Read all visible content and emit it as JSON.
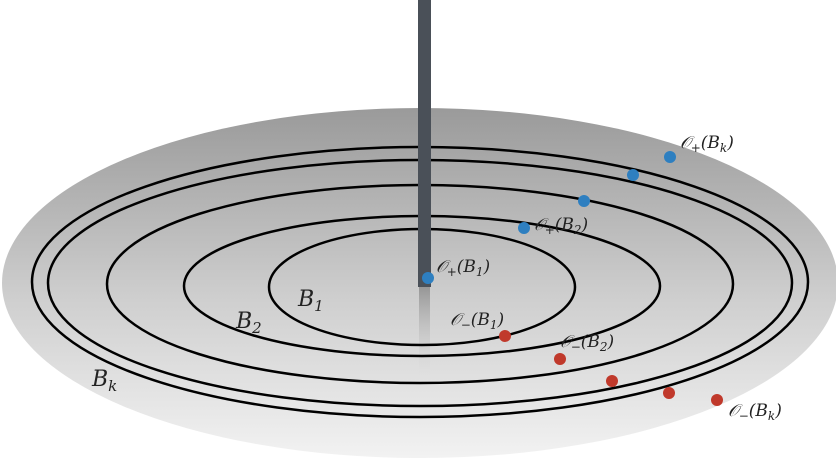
{
  "diagram": {
    "colors": {
      "disk_fill_light": "#f2f2f2",
      "disk_fill_dark": "#9a9a9a",
      "ring_stroke": "#000000",
      "rod": "#4a5058",
      "positive_dot": "#2e7fc0",
      "negative_dot": "#c0392b"
    },
    "ring_labels": {
      "b1": "B",
      "b1_sub": "1",
      "b2": "B",
      "b2_sub": "2",
      "bk": "B",
      "bk_sub": "k"
    },
    "orbit_labels": {
      "plus_b1": {
        "main": "𝒪",
        "sign": "+",
        "arg": "(B",
        "sub": "1",
        "close": ")"
      },
      "plus_b2": {
        "main": "𝒪",
        "sign": "+",
        "arg": "(B",
        "sub": "2",
        "close": ")"
      },
      "plus_bk": {
        "main": "𝒪",
        "sign": "+",
        "arg": "(B",
        "sub": "k",
        "close": ")"
      },
      "minus_b1": {
        "main": "𝒪",
        "sign": "−",
        "arg": "(B",
        "sub": "1",
        "close": ")"
      },
      "minus_b2": {
        "main": "𝒪",
        "sign": "−",
        "arg": "(B",
        "sub": "2",
        "close": ")"
      },
      "minus_bk": {
        "main": "𝒪",
        "sign": "−",
        "arg": "(B",
        "sub": "k",
        "close": ")"
      }
    }
  }
}
